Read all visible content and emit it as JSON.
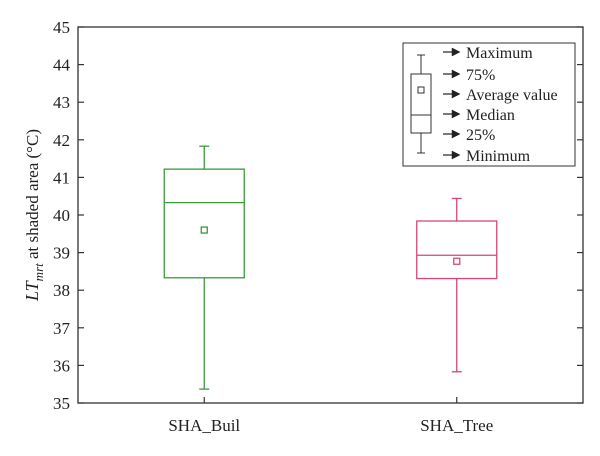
{
  "chart_data": {
    "type": "box",
    "ylabel": {
      "symbol": "LT",
      "subscript": "mrt",
      "rest": " at shaded area (°C)"
    },
    "ylim": [
      35,
      45
    ],
    "yticks": [
      "35",
      "36",
      "37",
      "38",
      "39",
      "40",
      "41",
      "42",
      "43",
      "44",
      "45"
    ],
    "grid": false,
    "legend_position": "top-right",
    "categories": [
      "SHA_Buil",
      "SHA_Tree"
    ],
    "boxes": [
      {
        "category": "SHA_Buil",
        "min": 35.37,
        "q1": 38.33,
        "median": 40.33,
        "mean": 39.6,
        "q3": 41.22,
        "max": 41.83,
        "color": "#3a9a3a"
      },
      {
        "category": "SHA_Tree",
        "min": 35.83,
        "q1": 38.31,
        "median": 38.93,
        "mean": 38.77,
        "q3": 39.84,
        "max": 40.44,
        "color": "#d6457a"
      }
    ],
    "legend": {
      "items": [
        "Maximum",
        "75%",
        "Average value",
        "Median",
        "25%",
        "Minimum"
      ]
    }
  }
}
